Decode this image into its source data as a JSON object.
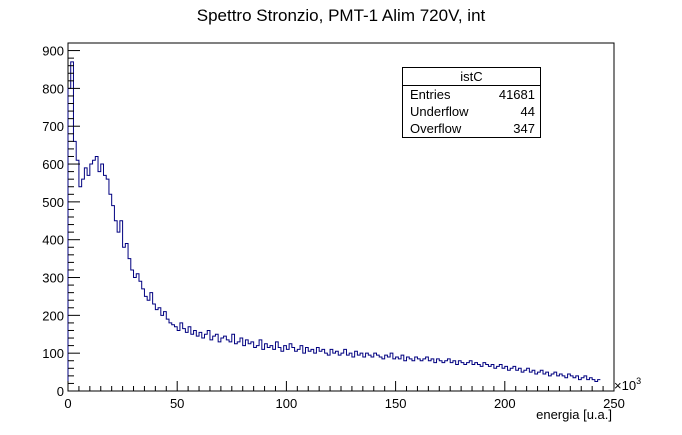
{
  "chart_data": {
    "type": "bar",
    "title": "Spettro Stronzio, PMT-1 Alim 720V, int",
    "xlabel": "energia [u.a.]",
    "ylabel": "",
    "x_exponent": "×10",
    "x_exponent_power": "3",
    "xlim": [
      0,
      250
    ],
    "ylim": [
      0,
      920
    ],
    "x_ticks": [
      0,
      50,
      100,
      150,
      200,
      250
    ],
    "y_ticks": [
      0,
      100,
      200,
      300,
      400,
      500,
      600,
      700,
      800,
      900
    ],
    "bin_width": 1.25,
    "values": [
      800,
      870,
      660,
      610,
      540,
      560,
      590,
      570,
      600,
      610,
      620,
      580,
      600,
      570,
      560,
      520,
      490,
      450,
      420,
      450,
      380,
      390,
      350,
      320,
      300,
      310,
      290,
      270,
      250,
      240,
      260,
      230,
      215,
      220,
      200,
      210,
      190,
      180,
      175,
      170,
      160,
      180,
      165,
      155,
      170,
      150,
      160,
      145,
      155,
      140,
      150,
      160,
      135,
      145,
      150,
      130,
      140,
      145,
      135,
      130,
      150,
      125,
      130,
      140,
      120,
      135,
      125,
      130,
      115,
      120,
      135,
      110,
      125,
      115,
      120,
      110,
      130,
      115,
      105,
      120,
      110,
      125,
      115,
      105,
      110,
      120,
      100,
      115,
      105,
      110,
      100,
      115,
      105,
      110,
      100,
      95,
      110,
      100,
      105,
      95,
      100,
      110,
      95,
      100,
      90,
      105,
      95,
      100,
      90,
      100,
      95,
      90,
      100,
      95,
      90,
      85,
      95,
      90,
      100,
      85,
      90,
      85,
      95,
      80,
      90,
      85,
      80,
      90,
      85,
      80,
      85,
      90,
      80,
      85,
      75,
      85,
      80,
      75,
      80,
      85,
      75,
      80,
      70,
      80,
      75,
      70,
      75,
      80,
      70,
      75,
      70,
      65,
      75,
      70,
      65,
      70,
      60,
      65,
      70,
      60,
      65,
      55,
      60,
      65,
      55,
      60,
      50,
      55,
      60,
      50,
      55,
      45,
      50,
      55,
      45,
      50,
      40,
      45,
      50,
      40,
      45,
      40,
      35,
      45,
      40,
      35,
      40,
      30,
      35,
      40,
      30,
      35,
      30,
      25,
      30
    ]
  },
  "stats_box": {
    "name": "istC",
    "rows": [
      {
        "label": "Entries",
        "value": "41681"
      },
      {
        "label": "Underflow",
        "value": "44"
      },
      {
        "label": "Overflow",
        "value": "347"
      }
    ]
  },
  "colors": {
    "line": "#000080",
    "frame": "#000000"
  }
}
